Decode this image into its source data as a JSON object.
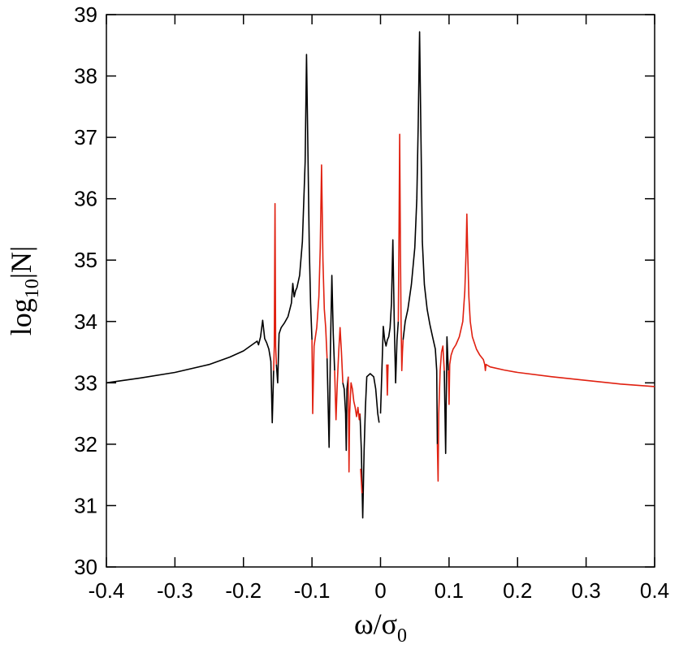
{
  "chart_data": {
    "type": "line",
    "title": "",
    "xlabel": {
      "main": "ω/σ",
      "sub": "0"
    },
    "ylabel": {
      "main": "log",
      "sub": "10",
      "tail": "|N|"
    },
    "xlim": [
      -0.4,
      0.4
    ],
    "ylim": [
      30,
      39
    ],
    "x_ticks": [
      -0.4,
      -0.3,
      -0.2,
      -0.1,
      0,
      0.1,
      0.2,
      0.3,
      0.4
    ],
    "x_tick_labels": [
      "-0.4",
      "-0.3",
      "-0.2",
      "-0.1",
      "0",
      "0.1",
      "0.2",
      "0.3",
      "0.4"
    ],
    "y_ticks": [
      30,
      31,
      32,
      33,
      34,
      35,
      36,
      37,
      38,
      39
    ],
    "y_tick_labels": [
      "30",
      "31",
      "32",
      "33",
      "34",
      "35",
      "36",
      "37",
      "38",
      "39"
    ],
    "grid": false,
    "legend": "none",
    "colors": {
      "black_series": "#000000",
      "red_series": "#e02010",
      "axes": "#000000"
    },
    "series": [
      {
        "color": "#000000",
        "segments": [
          [
            [
              -0.4,
              33.0
            ],
            [
              -0.35,
              33.08
            ],
            [
              -0.3,
              33.17
            ],
            [
              -0.25,
              33.3
            ],
            [
              -0.22,
              33.42
            ],
            [
              -0.2,
              33.52
            ],
            [
              -0.19,
              33.6
            ],
            [
              -0.18,
              33.68
            ],
            [
              -0.178,
              33.62
            ],
            [
              -0.175,
              33.75
            ],
            [
              -0.172,
              34.02
            ],
            [
              -0.169,
              33.72
            ],
            [
              -0.166,
              33.65
            ],
            [
              -0.163,
              33.55
            ],
            [
              -0.16,
              33.35
            ],
            [
              -0.158,
              32.35
            ],
            [
              -0.156,
              33.2
            ]
          ],
          [
            [
              -0.152,
              33.3
            ],
            [
              -0.15,
              33.0
            ],
            [
              -0.148,
              33.8
            ],
            [
              -0.145,
              33.9
            ],
            [
              -0.14,
              33.98
            ],
            [
              -0.135,
              34.08
            ],
            [
              -0.13,
              34.3
            ],
            [
              -0.128,
              34.62
            ],
            [
              -0.126,
              34.4
            ],
            [
              -0.124,
              34.5
            ],
            [
              -0.122,
              34.55
            ],
            [
              -0.118,
              34.75
            ],
            [
              -0.114,
              35.3
            ],
            [
              -0.11,
              36.6
            ],
            [
              -0.108,
              38.35
            ],
            [
              -0.106,
              36.8
            ],
            [
              -0.104,
              35.2
            ],
            [
              -0.102,
              34.3
            ],
            [
              -0.1,
              33.7
            ]
          ],
          [
            [
              -0.078,
              33.4
            ],
            [
              -0.075,
              31.95
            ],
            [
              -0.073,
              33.6
            ],
            [
              -0.071,
              34.75
            ],
            [
              -0.069,
              33.8
            ],
            [
              -0.067,
              33.2
            ]
          ],
          [
            [
              -0.055,
              33.0
            ],
            [
              -0.053,
              32.9
            ],
            [
              -0.051,
              32.5
            ],
            [
              -0.05,
              31.9
            ],
            [
              -0.049,
              32.9
            ],
            [
              -0.047,
              33.1
            ]
          ],
          [
            [
              -0.03,
              32.5
            ],
            [
              -0.028,
              31.9
            ],
            [
              -0.026,
              30.8
            ],
            [
              -0.024,
              31.9
            ],
            [
              -0.022,
              32.6
            ],
            [
              -0.02,
              33.1
            ],
            [
              -0.015,
              33.15
            ],
            [
              -0.01,
              33.1
            ],
            [
              -0.007,
              32.9
            ],
            [
              -0.004,
              32.5
            ],
            [
              -0.002,
              32.35
            ]
          ],
          [
            [
              0.0,
              32.5
            ],
            [
              0.002,
              33.2
            ],
            [
              0.004,
              33.92
            ],
            [
              0.006,
              33.7
            ],
            [
              0.008,
              33.6
            ],
            [
              0.01,
              33.7
            ],
            [
              0.012,
              33.75
            ],
            [
              0.014,
              33.9
            ],
            [
              0.016,
              34.3
            ],
            [
              0.018,
              35.33
            ],
            [
              0.02,
              34.0
            ],
            [
              0.022,
              33.0
            ],
            [
              0.024,
              33.7
            ],
            [
              0.026,
              34.0
            ]
          ],
          [
            [
              0.033,
              33.7
            ],
            [
              0.036,
              34.0
            ],
            [
              0.04,
              34.2
            ],
            [
              0.045,
              34.6
            ],
            [
              0.05,
              35.2
            ],
            [
              0.053,
              36.0
            ],
            [
              0.055,
              37.2
            ],
            [
              0.057,
              38.72
            ],
            [
              0.059,
              37.0
            ],
            [
              0.061,
              35.3
            ],
            [
              0.064,
              34.6
            ],
            [
              0.068,
              34.2
            ],
            [
              0.072,
              33.95
            ],
            [
              0.076,
              33.75
            ],
            [
              0.08,
              33.55
            ],
            [
              0.082,
              33.2
            ],
            [
              0.083,
              32.0
            ]
          ],
          [
            [
              0.093,
              33.2
            ],
            [
              0.095,
              31.85
            ],
            [
              0.097,
              33.75
            ],
            [
              0.099,
              33.2
            ]
          ]
        ]
      },
      {
        "color": "#e02010",
        "segments": [
          [
            [
              -0.156,
              33.2
            ],
            [
              -0.155,
              33.6
            ],
            [
              -0.154,
              35.92
            ],
            [
              -0.153,
              33.6
            ],
            [
              -0.152,
              33.3
            ]
          ],
          [
            [
              -0.1,
              33.7
            ],
            [
              -0.099,
              32.5
            ],
            [
              -0.097,
              33.6
            ],
            [
              -0.093,
              33.9
            ],
            [
              -0.09,
              34.4
            ],
            [
              -0.088,
              35.2
            ],
            [
              -0.086,
              36.55
            ],
            [
              -0.084,
              35.0
            ],
            [
              -0.082,
              34.2
            ],
            [
              -0.08,
              33.9
            ],
            [
              -0.078,
              33.4
            ]
          ],
          [
            [
              -0.067,
              33.2
            ],
            [
              -0.065,
              32.4
            ],
            [
              -0.063,
              33.0
            ],
            [
              -0.061,
              33.5
            ],
            [
              -0.059,
              33.9
            ],
            [
              -0.057,
              33.5
            ],
            [
              -0.055,
              33.0
            ]
          ],
          [
            [
              -0.047,
              33.1
            ],
            [
              -0.046,
              31.55
            ],
            [
              -0.045,
              32.5
            ],
            [
              -0.043,
              33.0
            ],
            [
              -0.041,
              32.9
            ],
            [
              -0.039,
              32.7
            ],
            [
              -0.037,
              32.6
            ],
            [
              -0.035,
              32.45
            ],
            [
              -0.033,
              32.6
            ],
            [
              -0.031,
              32.4
            ],
            [
              -0.03,
              32.5
            ]
          ],
          [
            [
              -0.029,
              31.6
            ],
            [
              -0.027,
              31.2
            ]
          ],
          [
            [
              0.009,
              33.3
            ],
            [
              0.01,
              32.8
            ],
            [
              0.011,
              33.3
            ]
          ],
          [
            [
              0.026,
              34.0
            ],
            [
              0.027,
              35.5
            ],
            [
              0.028,
              37.05
            ],
            [
              0.029,
              35.2
            ],
            [
              0.03,
              34.0
            ],
            [
              0.031,
              33.2
            ],
            [
              0.032,
              33.5
            ],
            [
              0.033,
              33.7
            ]
          ],
          [
            [
              0.083,
              32.0
            ],
            [
              0.084,
              31.4
            ],
            [
              0.085,
              32.5
            ],
            [
              0.087,
              33.2
            ],
            [
              0.089,
              33.5
            ],
            [
              0.091,
              33.6
            ],
            [
              0.093,
              33.2
            ]
          ],
          [
            [
              0.099,
              33.2
            ],
            [
              0.1,
              32.65
            ],
            [
              0.101,
              33.3
            ],
            [
              0.103,
              33.45
            ],
            [
              0.106,
              33.55
            ],
            [
              0.11,
              33.62
            ],
            [
              0.115,
              33.75
            ],
            [
              0.12,
              34.0
            ],
            [
              0.123,
              34.5
            ],
            [
              0.125,
              35.2
            ],
            [
              0.126,
              35.75
            ],
            [
              0.127,
              35.2
            ],
            [
              0.129,
              34.4
            ],
            [
              0.131,
              34.0
            ],
            [
              0.134,
              33.75
            ],
            [
              0.14,
              33.55
            ],
            [
              0.145,
              33.45
            ],
            [
              0.15,
              33.38
            ],
            [
              0.152,
              33.3
            ],
            [
              0.153,
              33.2
            ],
            [
              0.154,
              33.3
            ],
            [
              0.16,
              33.26
            ],
            [
              0.18,
              33.21
            ],
            [
              0.2,
              33.17
            ],
            [
              0.25,
              33.1
            ],
            [
              0.3,
              33.04
            ],
            [
              0.35,
              32.98
            ],
            [
              0.4,
              32.94
            ]
          ]
        ]
      }
    ]
  }
}
